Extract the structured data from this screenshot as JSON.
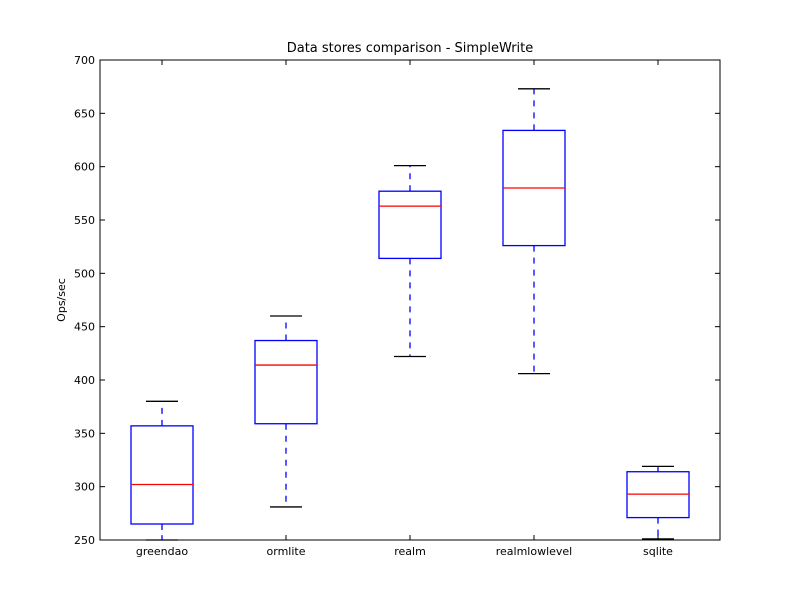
{
  "chart_data": {
    "type": "box",
    "title": "Data stores comparison - SimpleWrite",
    "xlabel": "",
    "ylabel": "Ops/sec",
    "ylim": [
      250,
      700
    ],
    "yticks": [
      250,
      300,
      350,
      400,
      450,
      500,
      550,
      600,
      650,
      700
    ],
    "grid": false,
    "categories": [
      "greendao",
      "ormlite",
      "realm",
      "realmlowlevel",
      "sqlite"
    ],
    "boxes": [
      {
        "category": "greendao",
        "whisker_low": 250,
        "q1": 265,
        "median": 302,
        "q3": 357,
        "whisker_high": 380
      },
      {
        "category": "ormlite",
        "whisker_low": 281,
        "q1": 359,
        "median": 414,
        "q3": 437,
        "whisker_high": 460
      },
      {
        "category": "realm",
        "whisker_low": 422,
        "q1": 514,
        "median": 563,
        "q3": 577,
        "whisker_high": 601
      },
      {
        "category": "realmlowlevel",
        "whisker_low": 406,
        "q1": 526,
        "median": 580,
        "q3": 634,
        "whisker_high": 673
      },
      {
        "category": "sqlite",
        "whisker_low": 251,
        "q1": 271,
        "median": 293,
        "q3": 314,
        "whisker_high": 319
      }
    ],
    "colors": {
      "box": "#0000ff",
      "median": "#ff0000",
      "whisker_cap": "#000000",
      "axes": "#000000"
    }
  }
}
